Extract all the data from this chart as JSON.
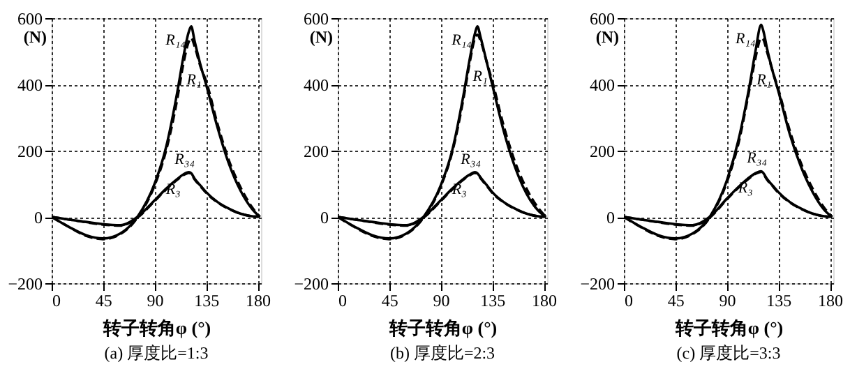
{
  "chart_data": [
    {
      "type": "line",
      "title": "(a)  厚度比=1:3",
      "xlabel": "转子转角φ  (°)",
      "ylabel": "(N)",
      "xlim": [
        0,
        183
      ],
      "ylim": [
        -200,
        600
      ],
      "xticks": [
        0,
        45,
        90,
        135,
        180
      ],
      "yticks": [
        -200,
        0,
        200,
        400,
        600
      ],
      "grid": true,
      "legend": false,
      "x": [
        0,
        15,
        30,
        45,
        60,
        75,
        90,
        100,
        110,
        115,
        120,
        122,
        125,
        130,
        135,
        145,
        155,
        165,
        175,
        182
      ],
      "series": [
        {
          "name": "R₁₄",
          "color": "#000000",
          "line_style": "solid",
          "values": [
            0,
            -30,
            -55,
            -65,
            -50,
            0,
            100,
            210,
            380,
            480,
            560,
            575,
            530,
            460,
            400,
            270,
            160,
            80,
            25,
            0
          ]
        },
        {
          "name": "R₁",
          "color": "#000000",
          "line_style": "dashed",
          "values": [
            0,
            -30,
            -57,
            -67,
            -52,
            -2,
            95,
            200,
            360,
            460,
            530,
            540,
            515,
            455,
            410,
            280,
            170,
            90,
            30,
            0
          ]
        },
        {
          "name": "R₃₄",
          "color": "#000000",
          "line_style": "solid",
          "values": [
            0,
            -8,
            -15,
            -22,
            -25,
            0,
            50,
            85,
            115,
            128,
            135,
            132,
            115,
            95,
            75,
            45,
            25,
            10,
            2,
            0
          ]
        },
        {
          "name": "R₃",
          "color": "#000000",
          "line_style": "dashed",
          "x": [
            0,
            15,
            30,
            45,
            60,
            75,
            90,
            100,
            110,
            115,
            120,
            122,
            125,
            130,
            135,
            145,
            155,
            165,
            175,
            180
          ],
          "values": [
            0,
            -8,
            -16,
            -23,
            -26,
            -2,
            48,
            83,
            113,
            126,
            133,
            130,
            113,
            93,
            73,
            44,
            24,
            10,
            2,
            1
          ]
        }
      ]
    },
    {
      "type": "line",
      "title": "(b)  厚度比=2:3",
      "xlabel": "转子转角φ  (°)",
      "ylabel": "(N)",
      "xlim": [
        0,
        183
      ],
      "ylim": [
        -200,
        600
      ],
      "xticks": [
        0,
        45,
        90,
        135,
        180
      ],
      "yticks": [
        -200,
        0,
        200,
        400,
        600
      ],
      "grid": true,
      "legend": false,
      "x": [
        0,
        15,
        30,
        45,
        60,
        75,
        90,
        100,
        110,
        115,
        120,
        122,
        125,
        130,
        135,
        145,
        155,
        165,
        175,
        182
      ],
      "series": [
        {
          "name": "R₁₄",
          "color": "#000000",
          "line_style": "solid",
          "values": [
            0,
            -30,
            -55,
            -65,
            -50,
            0,
            95,
            200,
            370,
            470,
            555,
            575,
            540,
            470,
            400,
            260,
            150,
            70,
            20,
            0
          ]
        },
        {
          "name": "R₁",
          "color": "#000000",
          "line_style": "dashed",
          "values": [
            0,
            -31,
            -57,
            -67,
            -52,
            -2,
            92,
            195,
            360,
            460,
            540,
            550,
            530,
            470,
            410,
            275,
            165,
            85,
            28,
            0
          ]
        },
        {
          "name": "R₃₄",
          "color": "#000000",
          "line_style": "solid",
          "values": [
            0,
            -8,
            -15,
            -22,
            -25,
            0,
            50,
            85,
            115,
            127,
            135,
            132,
            118,
            97,
            75,
            45,
            25,
            10,
            2,
            0
          ]
        },
        {
          "name": "R₃",
          "color": "#000000",
          "line_style": "dashed",
          "x": [
            0,
            15,
            30,
            45,
            60,
            75,
            90,
            100,
            110,
            115,
            120,
            122,
            125,
            130,
            135,
            145,
            155,
            165,
            175,
            180
          ],
          "values": [
            0,
            -8,
            -16,
            -23,
            -26,
            -2,
            48,
            83,
            113,
            125,
            133,
            130,
            116,
            95,
            73,
            44,
            24,
            10,
            2,
            1
          ]
        }
      ]
    },
    {
      "type": "line",
      "title": "(c)  厚度比=3:3",
      "xlabel": "转子转角φ  (°)",
      "ylabel": "(N)",
      "xlim": [
        0,
        183
      ],
      "ylim": [
        -200,
        600
      ],
      "xticks": [
        0,
        45,
        90,
        135,
        180
      ],
      "yticks": [
        -200,
        0,
        200,
        400,
        600
      ],
      "grid": true,
      "legend": false,
      "x": [
        0,
        15,
        30,
        45,
        60,
        75,
        90,
        100,
        110,
        115,
        120,
        122,
        125,
        130,
        135,
        145,
        155,
        165,
        175,
        182
      ],
      "series": [
        {
          "name": "R₁₄",
          "color": "#000000",
          "line_style": "solid",
          "values": [
            0,
            -30,
            -55,
            -65,
            -50,
            0,
            110,
            230,
            400,
            500,
            580,
            560,
            510,
            440,
            380,
            250,
            150,
            75,
            22,
            0
          ]
        },
        {
          "name": "R₁",
          "color": "#000000",
          "line_style": "dashed",
          "values": [
            0,
            -31,
            -57,
            -67,
            -52,
            -2,
            105,
            220,
            390,
            480,
            540,
            535,
            500,
            440,
            385,
            260,
            160,
            85,
            28,
            0
          ]
        },
        {
          "name": "R₃₄",
          "color": "#000000",
          "line_style": "solid",
          "values": [
            0,
            -8,
            -15,
            -22,
            -25,
            0,
            55,
            90,
            120,
            132,
            138,
            132,
            115,
            95,
            75,
            45,
            25,
            10,
            2,
            0
          ]
        },
        {
          "name": "R₃",
          "color": "#000000",
          "line_style": "dashed",
          "x": [
            0,
            15,
            30,
            45,
            60,
            75,
            90,
            100,
            110,
            115,
            120,
            122,
            125,
            130,
            135,
            145,
            155,
            165,
            175,
            180
          ],
          "values": [
            0,
            -8,
            -16,
            -23,
            -26,
            -2,
            53,
            88,
            118,
            130,
            136,
            130,
            113,
            93,
            73,
            44,
            24,
            10,
            2,
            1
          ]
        }
      ]
    }
  ]
}
